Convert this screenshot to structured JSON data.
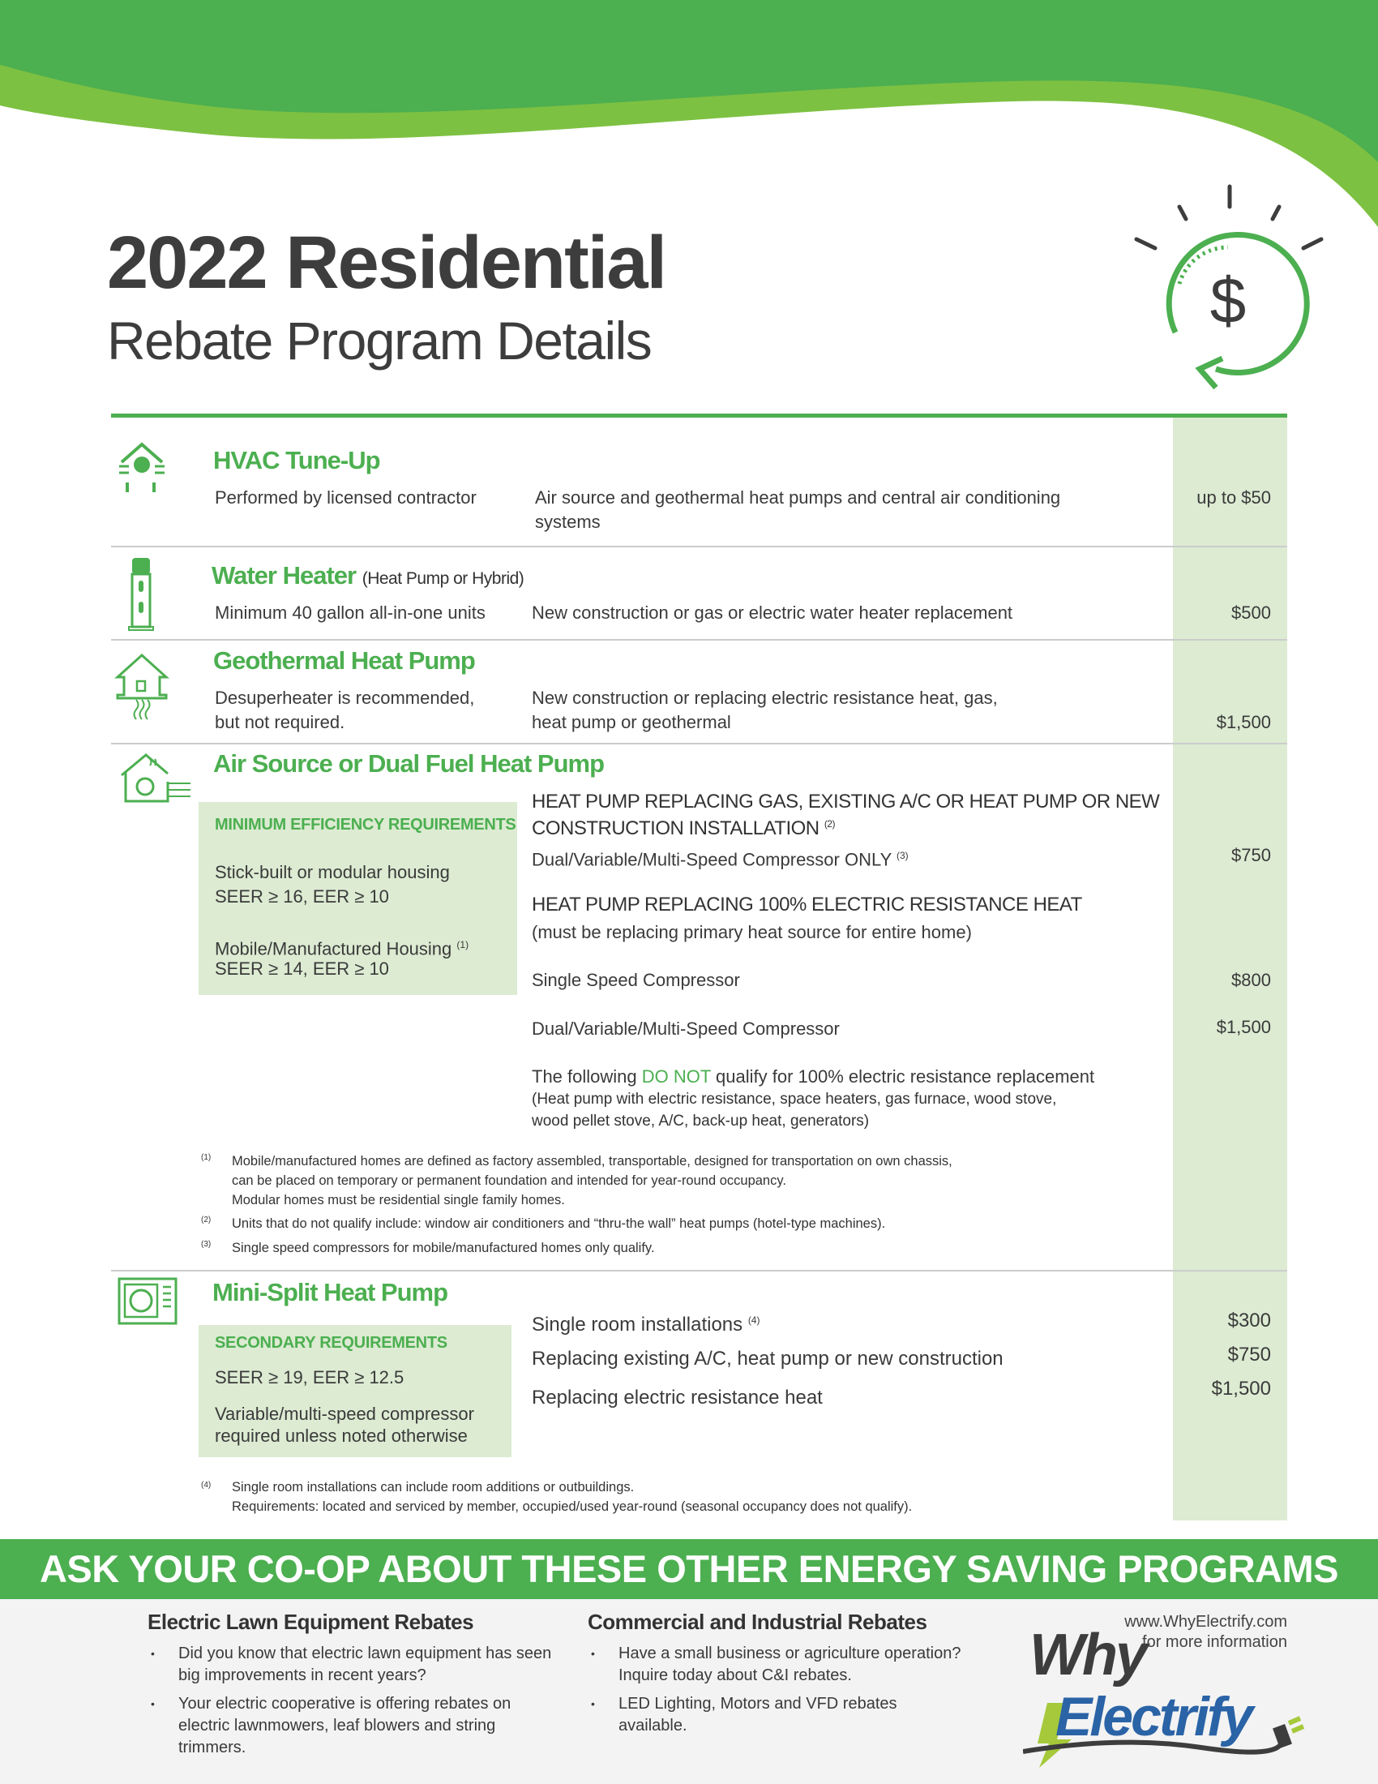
{
  "header": {
    "title": "2022 Residential",
    "subtitle": "Rebate Program Details"
  },
  "colors": {
    "green": "#4caf50",
    "light_green": "#7dc142",
    "box": "#dcebd2",
    "price_col": "#dcebd2",
    "blue": "#2a63a6"
  },
  "hvac": {
    "title": "HVAC Tune-Up",
    "req": "Performed by licensed contractor",
    "desc1": "Air source and geothermal heat pumps and central air conditioning",
    "desc2": "systems",
    "price": "up to $50"
  },
  "water": {
    "title": "Water Heater",
    "qual": "(Heat Pump or Hybrid)",
    "req": "Minimum 40 gallon all-in-one units",
    "desc": "New construction or gas or electric water heater replacement",
    "price": "$500"
  },
  "geo": {
    "title": "Geothermal Heat Pump",
    "req1": "Desuperheater is recommended,",
    "req2": "but not required.",
    "desc1": "New construction or replacing electric resistance heat, gas,",
    "desc2": "heat pump or geothermal",
    "price": "$1,500"
  },
  "air": {
    "title": "Air Source or Dual Fuel Heat Pump",
    "box": {
      "heading": "MINIMUM EFFICIENCY REQUIREMENTS",
      "l1": "Stick-built or modular housing",
      "l2": "SEER ≥ 16, EER ≥ 10",
      "l3": "Mobile/Manufactured Housing",
      "l3sup": "(1)",
      "l4": "SEER ≥ 14, EER ≥ 10"
    },
    "a1": "HEAT PUMP REPLACING GAS, EXISTING A/C OR HEAT PUMP OR NEW",
    "a2": "CONSTRUCTION INSTALLATION",
    "a2sup": "(2)",
    "a3": "Dual/Variable/Multi-Speed Compressor ONLY",
    "a3sup": "(3)",
    "a_price": "$750",
    "b1": "HEAT PUMP REPLACING 100% ELECTRIC RESISTANCE HEAT",
    "b2": "(must be replacing primary heat source for entire home)",
    "b3": "Single Speed Compressor",
    "b3_price": "$800",
    "b4": "Dual/Variable/Multi-Speed Compressor",
    "b4_price": "$1,500",
    "n1a": "The following ",
    "n1b": "DO NOT",
    "n1c": " qualify for 100% electric resistance replacement",
    "n2": "(Heat pump with electric resistance, space heaters, gas furnace, wood stove,",
    "n3": "wood pellet stove, A/C, back-up heat, generators)",
    "footnotes": [
      {
        "num": "(1)",
        "lines": [
          "Mobile/manufactured homes are defined as factory assembled, transportable, designed for transportation on own chassis,",
          "can be placed on temporary or permanent foundation and intended for year-round occupancy.",
          "Modular homes must be residential single family homes."
        ]
      },
      {
        "num": "(2)",
        "lines": [
          "Units that do not qualify include: window air conditioners and “thru-the wall” heat pumps (hotel-type machines)."
        ]
      },
      {
        "num": "(3)",
        "lines": [
          "Single speed compressors for mobile/manufactured homes only qualify."
        ]
      }
    ]
  },
  "mini": {
    "title": "Mini-Split Heat Pump",
    "box": {
      "heading": "SECONDARY REQUIREMENTS",
      "l1": "SEER ≥ 19, EER ≥ 12.5",
      "l2": "Variable/multi-speed compressor",
      "l3": "required unless noted otherwise"
    },
    "i1": "Single room installations",
    "i1sup": "(4)",
    "p1": "$300",
    "i2": "Replacing existing A/C, heat pump or new construction",
    "p2": "$750",
    "i3": "Replacing electric resistance heat",
    "p3": "$1,500",
    "fn_num": "(4)",
    "fn1": "Single room installations can include room additions or outbuildings.",
    "fn2": "Requirements: located and serviced by member, occupied/used year-round (seasonal occupancy does not qualify)."
  },
  "banner": "ASK YOUR CO-OP ABOUT THESE OTHER ENERGY SAVING PROGRAMS",
  "lawn": {
    "title": "Electric Lawn Equipment Rebates",
    "bullets": [
      "Did you know that electric lawn equipment has seen big improvements in recent years?",
      "Your electric cooperative is offering rebates on electric lawnmowers, leaf blowers and string trimmers."
    ]
  },
  "cni": {
    "title": "Commercial and Industrial Rebates",
    "bullets": [
      "Have a small business or agriculture operation? Inquire today about C&I rebates.",
      "LED Lighting, Motors and VFD rebates available."
    ]
  },
  "logo": {
    "url": "www.WhyElectrify.com",
    "more": "for more information",
    "word1": "Why",
    "word2": "Electrify"
  }
}
